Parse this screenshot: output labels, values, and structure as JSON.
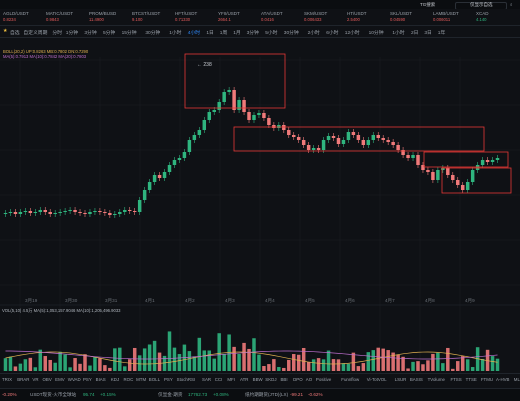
{
  "topbar": {
    "left_label": "TG搜索",
    "right_label": "仅显示自选",
    "search_label": "TG搜索"
  },
  "tickers": [
    {
      "name": "AGLD/USDT",
      "price": "0.8234",
      "up": false
    },
    {
      "name": "MATIC/USDT",
      "price": "0.9843",
      "up": false
    },
    {
      "name": "PROM/BUSD",
      "price": "11.4900",
      "up": false
    },
    {
      "name": "BTCST/USDT",
      "price": "9.100",
      "up": false
    },
    {
      "name": "HFT/USDT",
      "price": "0.71330",
      "up": false
    },
    {
      "name": "YFII/USDT",
      "price": "2664.1",
      "up": false
    },
    {
      "name": "ATA/USDT",
      "price": "0.0416",
      "up": false
    },
    {
      "name": "SKM/USDT",
      "price": "0.006433",
      "up": false
    },
    {
      "name": "HT/USDT",
      "price": "2.5400",
      "up": false
    },
    {
      "name": "SKL/USDT",
      "price": "0.04590",
      "up": false
    },
    {
      "name": "LAMB/USDT",
      "price": "0.006011",
      "up": false
    },
    {
      "name": "XCAD",
      "price": "4.140",
      "up": true
    }
  ],
  "intervals": [
    "自选",
    "自定义周期",
    "分时",
    "1分钟",
    "3分钟",
    "5分钟",
    "15分钟",
    "30分钟",
    "1小时",
    "4小时",
    "1日",
    "1周",
    "1月",
    "3分钟",
    "5小时",
    "30分钟",
    "2小时",
    "6小时",
    "12小时",
    "10分钟",
    "1小时",
    "2日",
    "3日",
    "1年"
  ],
  "active_interval": "4小时",
  "indicators": {
    "line1": "BOLL(20,2) UP:0.8263 MB:0.7802 DN:0.7290",
    "line2": "MA(5):0.7913  MA(10):0.7842  MA(20):0.7803",
    "peak_label": "238"
  },
  "x_labels": [
    "3月19",
    "3月30",
    "3月31",
    "4月1",
    "4月2",
    "4月3",
    "4月4",
    "4月5",
    "4月6",
    "4月7",
    "4月8",
    "4月9"
  ],
  "volume_header": "VOL(5,10) 4.5万  MA(5):1,053,157.9046  MA(10):1,205,496.9033",
  "bottom_indicators": [
    "TRIX",
    "BRAR",
    "VR",
    "OBV",
    "EMV",
    "WVAD",
    "PSY",
    "BIAS",
    "KDJ",
    "ROC",
    "MTM",
    "BOLL",
    "PSY",
    "StochRSI",
    "SAR",
    "CCI",
    "MFI",
    "ATR",
    "BBW",
    "SKDJ",
    "BBI",
    "DPO",
    "AO",
    "Positive",
    "Funnflow",
    "Vi-TotVOL",
    "LSUR",
    "BASIS",
    "TVolume",
    "FTSS",
    "TTSE",
    "FTMU",
    "A-HVB",
    "MLR",
    "APS"
  ],
  "status": {
    "left": "-0.20%",
    "pair": "USDT现货·火币全球站",
    "price1": "95.74",
    "chg1": "+0.15%",
    "label2": "仅显金·期货",
    "price2": "17762.73",
    "chg2": "+0.08%",
    "label3": "纸约期期货(JTD)(LX)",
    "price3": "-99.21",
    "chg3": "-0.62%"
  },
  "colors": {
    "up": "#2fb57f",
    "down": "#f07a7a",
    "box": "#e53935",
    "bg": "#0f1115",
    "active": "#2f8cff"
  }
}
